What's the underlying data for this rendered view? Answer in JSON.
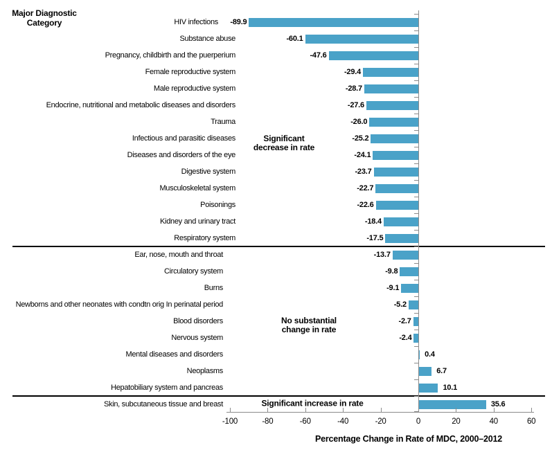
{
  "page": {
    "title_line1": "Major Diagnostic",
    "title_line2": "Category"
  },
  "chart_data": {
    "type": "bar",
    "orientation": "horizontal",
    "bar_color": "#4AA2C8",
    "axis_color": "#8a8a8a",
    "xlabel": "Percentage Change in Rate of MDC, 2000–2012",
    "xlim": [
      -100,
      60
    ],
    "x_ticks": [
      -100,
      -80,
      -60,
      -40,
      -20,
      0,
      20,
      40,
      60
    ],
    "grid": false,
    "legend": false,
    "categories": [
      "HIV infections",
      "Substance abuse",
      "Pregnancy, childbirth and the puerperium",
      "Female reproductive system",
      "Male reproductive system",
      "Endocrine, nutritional and metabolic diseases and disorders",
      "Trauma",
      "Infectious and parasitic diseases",
      "Diseases and disorders of the eye",
      "Digestive system",
      "Musculoskeletal system",
      "Poisonings",
      "Kidney and urinary tract",
      "Respiratory system",
      "Ear, nose, mouth and throat",
      "Circulatory system",
      "Burns",
      "Newborns and other neonates with condtn orig In perinatal period",
      "Blood disorders",
      "Nervous system",
      "Mental diseases and disorders",
      "Neoplasms",
      "Hepatobiliary system and pancreas",
      "Skin, subcutaneous tissue and breast"
    ],
    "values": [
      -89.9,
      -60.1,
      -47.6,
      -29.4,
      -28.7,
      -27.6,
      -26.0,
      -25.2,
      -24.1,
      -23.7,
      -22.7,
      -22.6,
      -18.4,
      -17.5,
      -13.7,
      -9.8,
      -9.1,
      -5.2,
      -2.7,
      -2.4,
      0.4,
      6.7,
      10.1,
      35.6
    ],
    "value_labels": [
      "-89.9",
      "-60.1",
      "-47.6",
      "-29.4",
      "-28.7",
      "-27.6",
      "-26.0",
      "-25.2",
      "-24.1",
      "-23.7",
      "-22.7",
      "-22.6",
      "-18.4",
      "-17.5",
      "-13.7",
      "-9.8",
      "-9.1",
      "-5.2",
      "-2.7",
      "-2.4",
      "0.4",
      "6.7",
      "10.1",
      "35.6"
    ],
    "group_separators_after": [
      "Respiratory system",
      "Hepatobiliary system and pancreas"
    ],
    "annotations": [
      {
        "text": "Significant decrease in rate",
        "lines": [
          "Significant",
          "decrease in rate"
        ]
      },
      {
        "text": "No substantial change in rate",
        "lines": [
          "No substantial",
          "change in rate"
        ]
      },
      {
        "text": "Significant increase in rate",
        "lines": [
          "Significant increase in rate"
        ]
      }
    ]
  }
}
